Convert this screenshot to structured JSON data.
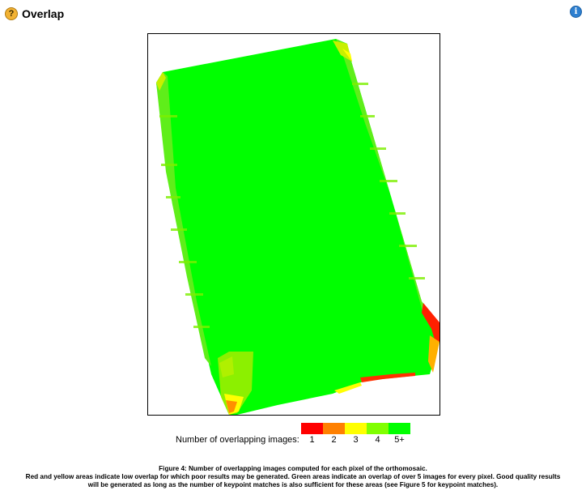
{
  "header": {
    "title": "Overlap",
    "help_icon": "help-icon",
    "info_icon": "info-icon"
  },
  "legend": {
    "label": "Number of overlapping images:",
    "items": [
      {
        "label": "1",
        "color": "#ff0000"
      },
      {
        "label": "2",
        "color": "#ff8000"
      },
      {
        "label": "3",
        "color": "#ffff00"
      },
      {
        "label": "4",
        "color": "#80ff00"
      },
      {
        "label": "5+",
        "color": "#00ff00"
      }
    ]
  },
  "caption": {
    "title": "Figure 4: Number of overlapping images computed for each pixel of the orthomosaic.",
    "body": "Red and yellow areas indicate low overlap for which poor results may be generated. Green areas indicate an overlap of over 5 images for every pixel. Good quality results will be generated as long as the number of keypoint matches is also sufficient for these areas (see Figure 5 for keypoint matches)."
  }
}
